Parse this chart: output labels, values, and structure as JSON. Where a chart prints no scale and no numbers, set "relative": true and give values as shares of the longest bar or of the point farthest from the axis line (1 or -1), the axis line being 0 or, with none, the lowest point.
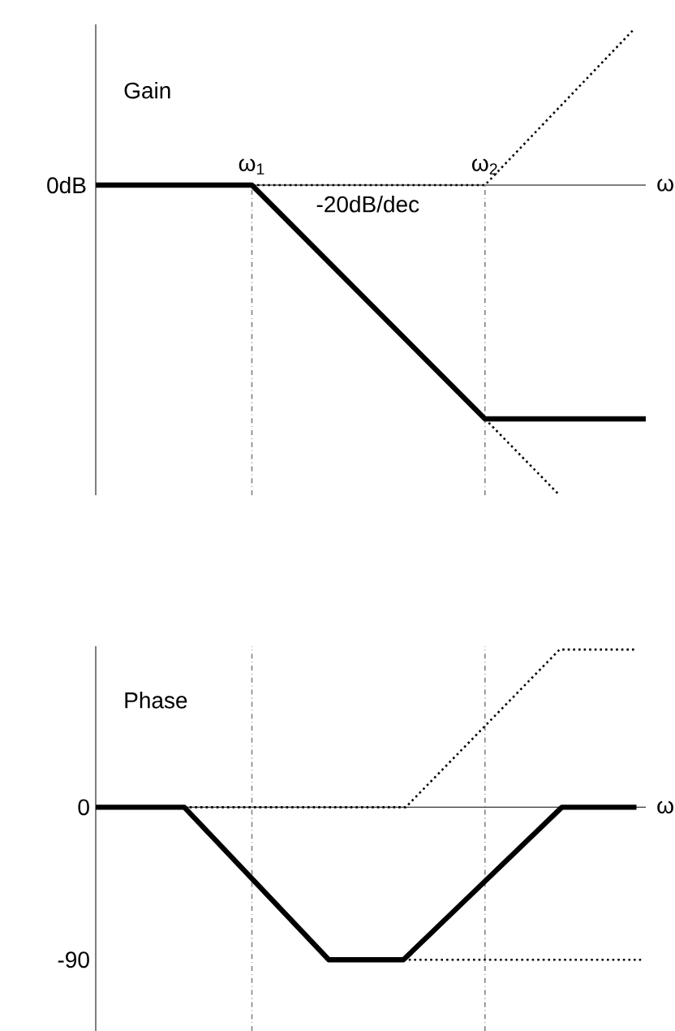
{
  "chart_data": [
    {
      "type": "line",
      "relative": true,
      "ylabel": "Gain",
      "xlabel": "ω",
      "xlim": [
        0.33,
        2.69
      ],
      "xticks": [
        {
          "value": 1,
          "label": "ω$_{1}$"
        },
        {
          "value": 2,
          "label": "ω$_{2}$"
        }
      ],
      "tick_labels": "x",
      "grid": false,
      "series": [
        {
          "x": [
            0.33,
            1,
            2,
            2.69
          ],
          "values": [
            0,
            0,
            -0.754,
            -0.754
          ],
          "color": "#000000",
          "line_style": "solid"
        },
        {
          "x": [
            1,
            2,
            2.64
          ],
          "values": [
            0,
            0,
            0.503
          ],
          "color": "#000000",
          "line_style": "dotted"
        },
        {
          "x": [
            2,
            2.32
          ],
          "values": [
            -0.754,
            -1
          ],
          "color": "#000000",
          "line_style": "dotted"
        }
      ],
      "ref_lines": [
        {
          "axis": "x",
          "value": 1,
          "color": "#808080",
          "line_style": "dashdot"
        },
        {
          "axis": "x",
          "value": 2,
          "color": "#808080",
          "line_style": "dashdot"
        }
      ],
      "annotations": [
        "0dB",
        "-20dB/dec"
      ]
    },
    {
      "type": "line",
      "ylabel": "Phase",
      "xlabel": "ω",
      "xlim": [
        0.33,
        2.69
      ],
      "ylim": [
        -132,
        95
      ],
      "yticks": [
        0,
        -90
      ],
      "tick_labels": "y",
      "grid": false,
      "series": [
        {
          "x": [
            0.33,
            0.71,
            1.33,
            1.65,
            2.33,
            2.65
          ],
          "values": [
            0,
            0,
            -90,
            -90,
            0,
            0
          ],
          "color": "#000000",
          "line_style": "solid"
        },
        {
          "x": [
            0.71,
            1.66,
            2.32,
            2.65
          ],
          "values": [
            0,
            0,
            93,
            93
          ],
          "color": "#000000",
          "line_style": "dotted"
        },
        {
          "x": [
            1.65,
            2.67
          ],
          "values": [
            -90,
            -90
          ],
          "color": "#000000",
          "line_style": "dotted"
        }
      ],
      "ref_lines": [
        {
          "axis": "x",
          "value": 1,
          "color": "#808080",
          "line_style": "dashdot"
        },
        {
          "axis": "x",
          "value": 2,
          "color": "#808080",
          "line_style": "dashdot"
        }
      ]
    }
  ]
}
